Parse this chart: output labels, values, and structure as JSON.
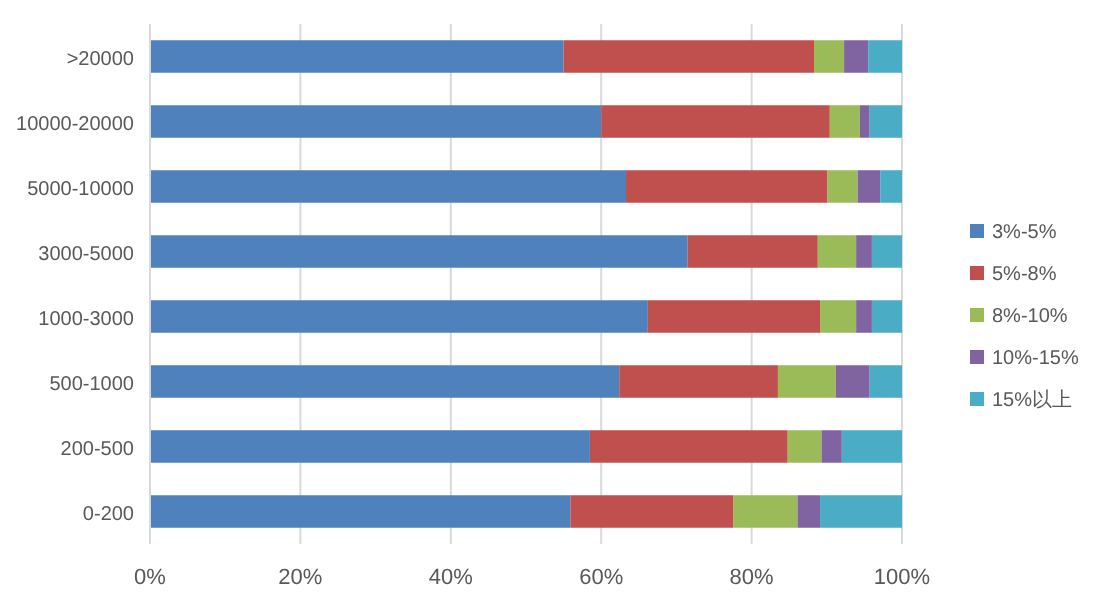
{
  "chart_data": {
    "type": "bar",
    "orientation": "horizontal",
    "stacked": true,
    "categories": [
      ">20000",
      "10000-20000",
      "5000-10000",
      "3000-5000",
      "1000-3000",
      "500-1000",
      "200-500",
      "0-200"
    ],
    "series": [
      {
        "name": "3%-5%",
        "color": "#4f81bd",
        "values": [
          55.0,
          60.0,
          63.3,
          71.5,
          66.2,
          62.4,
          58.5,
          55.9
        ]
      },
      {
        "name": "5%-8%",
        "color": "#c0504d",
        "values": [
          33.3,
          30.4,
          26.8,
          17.3,
          22.9,
          21.1,
          26.3,
          21.7
        ]
      },
      {
        "name": "8%-10%",
        "color": "#9bbb59",
        "values": [
          4.0,
          4.0,
          4.0,
          5.1,
          4.8,
          7.7,
          4.5,
          8.5
        ]
      },
      {
        "name": "10%-15%",
        "color": "#8064a2",
        "values": [
          3.2,
          1.3,
          3.0,
          2.1,
          2.1,
          4.5,
          2.7,
          3.0
        ]
      },
      {
        "name": "15%以上",
        "color": "#4bacc6",
        "values": [
          4.5,
          4.3,
          2.9,
          4.0,
          4.0,
          4.3,
          8.0,
          10.9
        ]
      }
    ],
    "xlim": [
      0,
      100
    ],
    "xticks": [
      {
        "value": 0,
        "label": "0%"
      },
      {
        "value": 20,
        "label": "20%"
      },
      {
        "value": 40,
        "label": "40%"
      },
      {
        "value": 60,
        "label": "60%"
      },
      {
        "value": 80,
        "label": "80%"
      },
      {
        "value": 100,
        "label": "100%"
      }
    ],
    "grid": "x",
    "legend": "right"
  }
}
